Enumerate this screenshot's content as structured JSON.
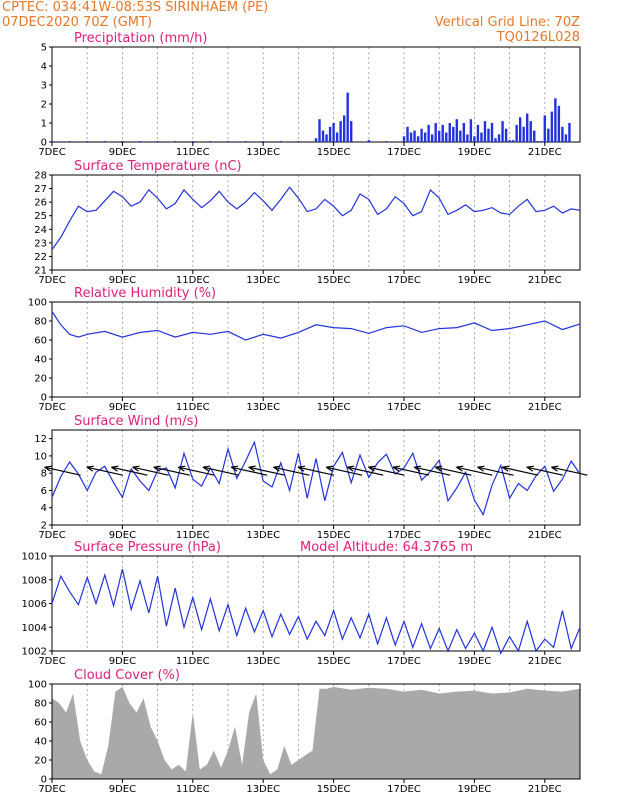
{
  "header": {
    "line1": "CPTEC:   034:41W-08:53S   SIRINHAEM (PE)",
    "line2": "07DEC2020 70Z (GMT)",
    "grid_note": "Vertical Grid Line: 70Z",
    "code": "TQ0126L028"
  },
  "colors": {
    "header": "#e8782a",
    "title": "#e0207a",
    "line": "#2233dd",
    "cloud": "#a9a9a9"
  },
  "x_ticks": [
    "7DEC",
    "9DEC",
    "11DEC",
    "13DEC",
    "15DEC",
    "17DEC",
    "19DEC",
    "21DEC"
  ],
  "chart_data": [
    {
      "id": "precip",
      "type": "bar",
      "title": "Precipitation (mm/h)",
      "ylim": [
        0,
        5
      ],
      "yticks": [
        0,
        1,
        2,
        3,
        4,
        5
      ],
      "x_range_days": [
        7,
        22
      ],
      "series": [
        {
          "x": [
            7.0,
            7.5,
            8.0,
            8.5,
            9.0,
            9.5,
            10.0,
            10.5,
            11.0,
            11.5,
            12.0,
            12.5,
            13.0,
            13.5,
            14.0,
            14.5,
            14.6,
            14.7,
            14.8,
            14.9,
            15.0,
            15.1,
            15.2,
            15.3,
            15.4,
            15.5,
            16.0,
            16.5,
            17.0,
            17.1,
            17.2,
            17.3,
            17.4,
            17.5,
            17.6,
            17.7,
            17.8,
            17.9,
            18.0,
            18.1,
            18.2,
            18.3,
            18.4,
            18.5,
            18.6,
            18.7,
            18.8,
            18.9,
            19.0,
            19.1,
            19.2,
            19.3,
            19.4,
            19.5,
            19.6,
            19.7,
            19.8,
            19.9,
            20.0,
            20.1,
            20.2,
            20.3,
            20.4,
            20.5,
            20.6,
            20.7,
            20.8,
            20.9,
            21.0,
            21.1,
            21.2,
            21.3,
            21.4,
            21.5,
            21.6,
            21.7
          ],
          "y": [
            0.05,
            0.05,
            0.05,
            0.05,
            0.05,
            0.05,
            0.05,
            0.05,
            0.05,
            0.05,
            0.05,
            0.05,
            0.05,
            0.05,
            0.05,
            0.2,
            1.2,
            0.6,
            0.4,
            0.8,
            1.0,
            0.5,
            1.1,
            1.4,
            2.6,
            1.1,
            0.1,
            0.05,
            0.3,
            0.8,
            0.5,
            0.6,
            0.3,
            0.7,
            0.5,
            0.9,
            0.4,
            1.0,
            0.6,
            0.9,
            0.5,
            1.0,
            0.8,
            1.2,
            0.6,
            1.0,
            0.4,
            1.2,
            0.3,
            0.9,
            0.5,
            1.1,
            0.7,
            1.0,
            0.2,
            0.4,
            1.1,
            0.7,
            0.1,
            0.1,
            0.9,
            1.3,
            0.8,
            1.5,
            1.1,
            0.6,
            0.05,
            0.05,
            1.4,
            0.7,
            1.6,
            2.3,
            1.9,
            0.8,
            0.4,
            1.0
          ]
        }
      ]
    },
    {
      "id": "temp",
      "type": "line",
      "title": "Surface Temperature (nC)",
      "ylim": [
        21,
        28
      ],
      "yticks": [
        21,
        22,
        23,
        24,
        25,
        26,
        27,
        28
      ],
      "x_range_days": [
        7,
        22
      ],
      "series": [
        {
          "x": [
            7.0,
            7.25,
            7.5,
            7.75,
            8.0,
            8.25,
            8.5,
            8.75,
            9.0,
            9.25,
            9.5,
            9.75,
            10.0,
            10.25,
            10.5,
            10.75,
            11.0,
            11.25,
            11.5,
            11.75,
            12.0,
            12.25,
            12.5,
            12.75,
            13.0,
            13.25,
            13.5,
            13.75,
            14.0,
            14.25,
            14.5,
            14.75,
            15.0,
            15.25,
            15.5,
            15.75,
            16.0,
            16.25,
            16.5,
            16.75,
            17.0,
            17.25,
            17.5,
            17.75,
            18.0,
            18.25,
            18.5,
            18.75,
            19.0,
            19.25,
            19.5,
            19.75,
            20.0,
            20.25,
            20.5,
            20.75,
            21.0,
            21.25,
            21.5,
            21.75,
            22.0
          ],
          "y": [
            22.5,
            23.4,
            24.6,
            25.7,
            25.3,
            25.4,
            26.1,
            26.8,
            26.4,
            25.7,
            26.0,
            26.9,
            26.3,
            25.5,
            25.9,
            26.9,
            26.2,
            25.6,
            26.1,
            26.8,
            26.0,
            25.5,
            26.0,
            26.7,
            26.1,
            25.4,
            26.2,
            27.1,
            26.3,
            25.3,
            25.5,
            26.2,
            25.7,
            25.0,
            25.4,
            26.6,
            26.2,
            25.1,
            25.5,
            26.4,
            25.9,
            25.0,
            25.3,
            26.9,
            26.3,
            25.1,
            25.4,
            25.8,
            25.3,
            25.4,
            25.6,
            25.2,
            25.1,
            25.7,
            26.2,
            25.3,
            25.4,
            25.7,
            25.2,
            25.5,
            25.4
          ]
        }
      ]
    },
    {
      "id": "rh",
      "type": "line",
      "title": "Relative Humidity (%)",
      "ylim": [
        0,
        100
      ],
      "yticks": [
        0,
        20,
        40,
        60,
        80,
        100
      ],
      "x_range_days": [
        7,
        22
      ],
      "series": [
        {
          "x": [
            7.0,
            7.25,
            7.5,
            7.75,
            8.0,
            8.5,
            9.0,
            9.5,
            10.0,
            10.5,
            11.0,
            11.5,
            12.0,
            12.5,
            13.0,
            13.5,
            14.0,
            14.5,
            15.0,
            15.5,
            16.0,
            16.5,
            17.0,
            17.5,
            18.0,
            18.5,
            19.0,
            19.5,
            20.0,
            20.5,
            21.0,
            21.5,
            22.0
          ],
          "y": [
            90,
            76,
            66,
            63,
            66,
            69,
            63,
            68,
            70,
            63,
            68,
            66,
            69,
            60,
            66,
            62,
            68,
            76,
            73,
            72,
            67,
            73,
            75,
            68,
            72,
            73,
            78,
            70,
            72,
            76,
            80,
            71,
            77
          ]
        }
      ]
    },
    {
      "id": "wind",
      "type": "line",
      "title": "Surface Wind (m/s)",
      "ylim": [
        2,
        13
      ],
      "yticks": [
        2,
        4,
        6,
        8,
        10,
        12
      ],
      "x_range_days": [
        7,
        22
      ],
      "series": [
        {
          "x": [
            7.0,
            7.25,
            7.5,
            7.75,
            8.0,
            8.25,
            8.5,
            8.75,
            9.0,
            9.25,
            9.5,
            9.75,
            10.0,
            10.25,
            10.5,
            10.75,
            11.0,
            11.25,
            11.5,
            11.75,
            12.0,
            12.25,
            12.5,
            12.75,
            13.0,
            13.25,
            13.5,
            13.75,
            14.0,
            14.25,
            14.5,
            14.75,
            15.0,
            15.25,
            15.5,
            15.75,
            16.0,
            16.25,
            16.5,
            16.75,
            17.0,
            17.25,
            17.5,
            17.75,
            18.0,
            18.25,
            18.5,
            18.75,
            19.0,
            19.25,
            19.5,
            19.75,
            20.0,
            20.25,
            20.5,
            20.75,
            21.0,
            21.25,
            21.5,
            21.75,
            22.0
          ],
          "y": [
            5.2,
            7.6,
            9.3,
            7.9,
            6.0,
            8.1,
            8.8,
            6.9,
            5.2,
            8.5,
            7.1,
            6.0,
            8.3,
            8.6,
            6.3,
            10.3,
            7.3,
            6.5,
            8.6,
            6.8,
            10.8,
            7.4,
            9.4,
            11.6,
            7.1,
            6.4,
            9.2,
            6.0,
            10.3,
            5.1,
            9.7,
            4.8,
            8.8,
            10.4,
            6.9,
            10.1,
            7.5,
            9.2,
            10.2,
            7.9,
            8.6,
            10.3,
            7.2,
            8.2,
            9.5,
            4.8,
            6.3,
            8.1,
            4.9,
            3.2,
            6.6,
            8.9,
            5.1,
            6.8,
            6.0,
            7.7,
            8.8,
            5.9,
            7.3,
            9.4,
            7.9
          ]
        }
      ],
      "arrows_x": [
        7.3,
        8.5,
        9.2,
        9.8,
        10.4,
        11.1,
        11.8,
        12.6,
        13.1,
        13.8,
        14.5,
        15.3,
        15.9,
        16.5,
        17.2,
        17.8,
        18.4,
        19.0,
        19.6,
        20.3,
        21.0,
        21.7
      ]
    },
    {
      "id": "pressure",
      "type": "line",
      "title": "Surface Pressure (hPa)",
      "annotation": "Model Altitude: 64.3765 m",
      "ylim": [
        1002,
        1010
      ],
      "yticks": [
        1002,
        1004,
        1006,
        1008,
        1010
      ],
      "x_range_days": [
        7,
        22
      ],
      "series": [
        {
          "x": [
            7.0,
            7.25,
            7.5,
            7.75,
            8.0,
            8.25,
            8.5,
            8.75,
            9.0,
            9.25,
            9.5,
            9.75,
            10.0,
            10.25,
            10.5,
            10.75,
            11.0,
            11.25,
            11.5,
            11.75,
            12.0,
            12.25,
            12.5,
            12.75,
            13.0,
            13.25,
            13.5,
            13.75,
            14.0,
            14.25,
            14.5,
            14.75,
            15.0,
            15.25,
            15.5,
            15.75,
            16.0,
            16.25,
            16.5,
            16.75,
            17.0,
            17.25,
            17.5,
            17.75,
            18.0,
            18.25,
            18.5,
            18.75,
            19.0,
            19.25,
            19.5,
            19.75,
            20.0,
            20.25,
            20.5,
            20.75,
            21.0,
            21.25,
            21.5,
            21.75,
            22.0
          ],
          "y": [
            1006.0,
            1008.3,
            1007.0,
            1005.9,
            1008.2,
            1006.0,
            1008.4,
            1005.8,
            1008.9,
            1005.5,
            1007.9,
            1005.2,
            1008.3,
            1004.1,
            1007.3,
            1004.0,
            1006.5,
            1003.8,
            1006.4,
            1003.7,
            1005.9,
            1003.3,
            1005.6,
            1003.6,
            1005.4,
            1003.2,
            1005.1,
            1003.4,
            1004.9,
            1003.0,
            1004.5,
            1003.3,
            1005.4,
            1003.0,
            1004.8,
            1003.1,
            1005.1,
            1002.6,
            1004.8,
            1002.5,
            1004.5,
            1002.3,
            1004.3,
            1002.2,
            1003.9,
            1002.0,
            1003.8,
            1002.2,
            1003.5,
            1002.0,
            1004.0,
            1001.8,
            1003.2,
            1002.0,
            1004.5,
            1002.0,
            1003.0,
            1002.3,
            1005.4,
            1002.2,
            1004.0
          ]
        }
      ]
    },
    {
      "id": "cloud",
      "type": "area",
      "title": "Cloud Cover (%)",
      "ylim": [
        0,
        100
      ],
      "yticks": [
        0,
        20,
        40,
        60,
        80,
        100
      ],
      "x_range_days": [
        7,
        22
      ],
      "series": [
        {
          "x": [
            7.0,
            7.2,
            7.4,
            7.6,
            7.8,
            8.0,
            8.2,
            8.4,
            8.6,
            8.8,
            9.0,
            9.2,
            9.4,
            9.6,
            9.8,
            10.0,
            10.2,
            10.4,
            10.6,
            10.8,
            11.0,
            11.2,
            11.4,
            11.6,
            11.8,
            12.0,
            12.2,
            12.4,
            12.6,
            12.8,
            13.0,
            13.2,
            13.4,
            13.6,
            13.8,
            14.0,
            14.2,
            14.4,
            14.6,
            14.8,
            15.0,
            15.5,
            16.0,
            16.5,
            17.0,
            17.5,
            18.0,
            18.5,
            19.0,
            19.5,
            20.0,
            20.5,
            21.0,
            21.5,
            22.0
          ],
          "y": [
            85,
            80,
            70,
            90,
            40,
            20,
            8,
            5,
            35,
            92,
            97,
            80,
            70,
            85,
            55,
            40,
            20,
            10,
            15,
            8,
            70,
            10,
            15,
            30,
            12,
            30,
            55,
            15,
            70,
            90,
            20,
            5,
            10,
            35,
            15,
            20,
            25,
            30,
            95,
            95,
            97,
            94,
            96,
            95,
            92,
            94,
            90,
            92,
            93,
            90,
            91,
            95,
            93,
            92,
            95
          ]
        }
      ]
    }
  ]
}
